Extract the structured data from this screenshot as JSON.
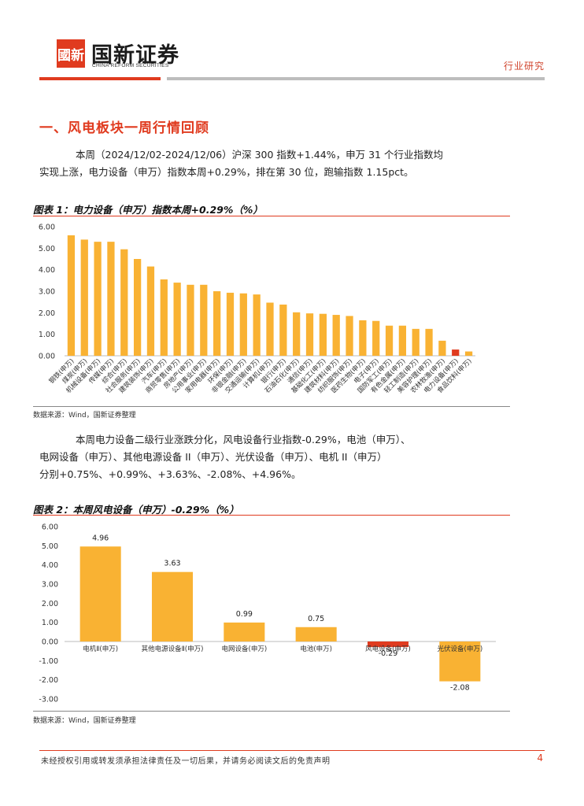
{
  "header": {
    "logo_mark": "國新",
    "company_cn": "国新证券",
    "company_en": "CHINA REFORM SECURITIES",
    "report_type": "行业研究"
  },
  "section": {
    "title": "一、风电板块一周行情回顾"
  },
  "paragraph1": {
    "line1": "本周（2024/12/02-2024/12/06）沪深 300 指数+1.44%，申万 31 个行业指数均",
    "line2": "实现上涨，电力设备（申万）指数本周+0.29%，排在第 30 位，跑输指数 1.15pct。"
  },
  "paragraph2": {
    "line1": "本周电力设备二级行业涨跌分化，风电设备行业指数-0.29%，电池（申万）、",
    "line2": "电网设备（申万）、其他电源设备 II（申万）、光伏设备（申万）、电机 II（申万）",
    "line3": "分别+0.75%、+0.99%、+3.63%、-2.08%、+4.96%。"
  },
  "chart1_title": "图表 1：电力设备（申万）指数本周+0.29%（%）",
  "chart2_title": "图表 2：本周风电设备（申万）-0.29%（%）",
  "source1": "数据来源：Wind，国新证券整理",
  "source2": "数据来源：Wind，国新证券整理",
  "footer": {
    "disclaimer": "未经授权引用或转发须承担法律责任及一切后果，并请务必阅读文后的免责声明",
    "page": "4"
  },
  "colors": {
    "accent": "#e03b1f",
    "bar": "#f9b233",
    "highlight": "#e03b1f"
  },
  "chart_data": [
    {
      "type": "bar",
      "ylim": [
        0,
        6
      ],
      "yticks": [
        "0.00",
        "1.00",
        "2.00",
        "3.00",
        "4.00",
        "5.00",
        "6.00"
      ],
      "categories": [
        "钢铁(申万)",
        "煤炭(申万)",
        "机械设备(申万)",
        "传媒(申万)",
        "综合(申万)",
        "社会服务(申万)",
        "建筑装饰(申万)",
        "汽车(申万)",
        "商贸零售(申万)",
        "房地产(申万)",
        "公用事业(申万)",
        "家用电器(申万)",
        "环保(申万)",
        "非银金融(申万)",
        "交通运输(申万)",
        "计算机(申万)",
        "银行(申万)",
        "石油石化(申万)",
        "通信(申万)",
        "基础化工(申万)",
        "建筑材料(申万)",
        "纺织服饰(申万)",
        "医药生物(申万)",
        "电子(申万)",
        "国防军工(申万)",
        "有色金属(申万)",
        "轻工制造(申万)",
        "美容护理(申万)",
        "农林牧渔(申万)",
        "电力设备(申万)",
        "食品饮料(申万)"
      ],
      "values": [
        5.6,
        5.4,
        5.3,
        5.3,
        4.95,
        4.5,
        4.15,
        3.55,
        3.4,
        3.3,
        3.3,
        3.0,
        2.93,
        2.9,
        2.85,
        2.47,
        2.38,
        2.02,
        1.97,
        1.95,
        1.9,
        1.85,
        1.65,
        1.62,
        1.4,
        1.4,
        1.25,
        1.25,
        0.7,
        0.29,
        0.2
      ],
      "highlight_index": 29
    },
    {
      "type": "bar",
      "ylim": [
        -3,
        6
      ],
      "yticks": [
        "-3.00",
        "-2.00",
        "-1.00",
        "0.00",
        "1.00",
        "2.00",
        "3.00",
        "4.00",
        "5.00",
        "6.00"
      ],
      "categories": [
        "电机Ⅱ(申万)",
        "其他电源设备Ⅱ(申万)",
        "电网设备(申万)",
        "电池(申万)",
        "风电设备(申万)",
        "光伏设备(申万)"
      ],
      "values": [
        4.96,
        3.63,
        0.99,
        0.75,
        -0.29,
        -2.08
      ],
      "data_labels": [
        "4.96",
        "3.63",
        "0.99",
        "0.75",
        "-0.29",
        "-2.08"
      ],
      "highlight_index": 4
    }
  ]
}
